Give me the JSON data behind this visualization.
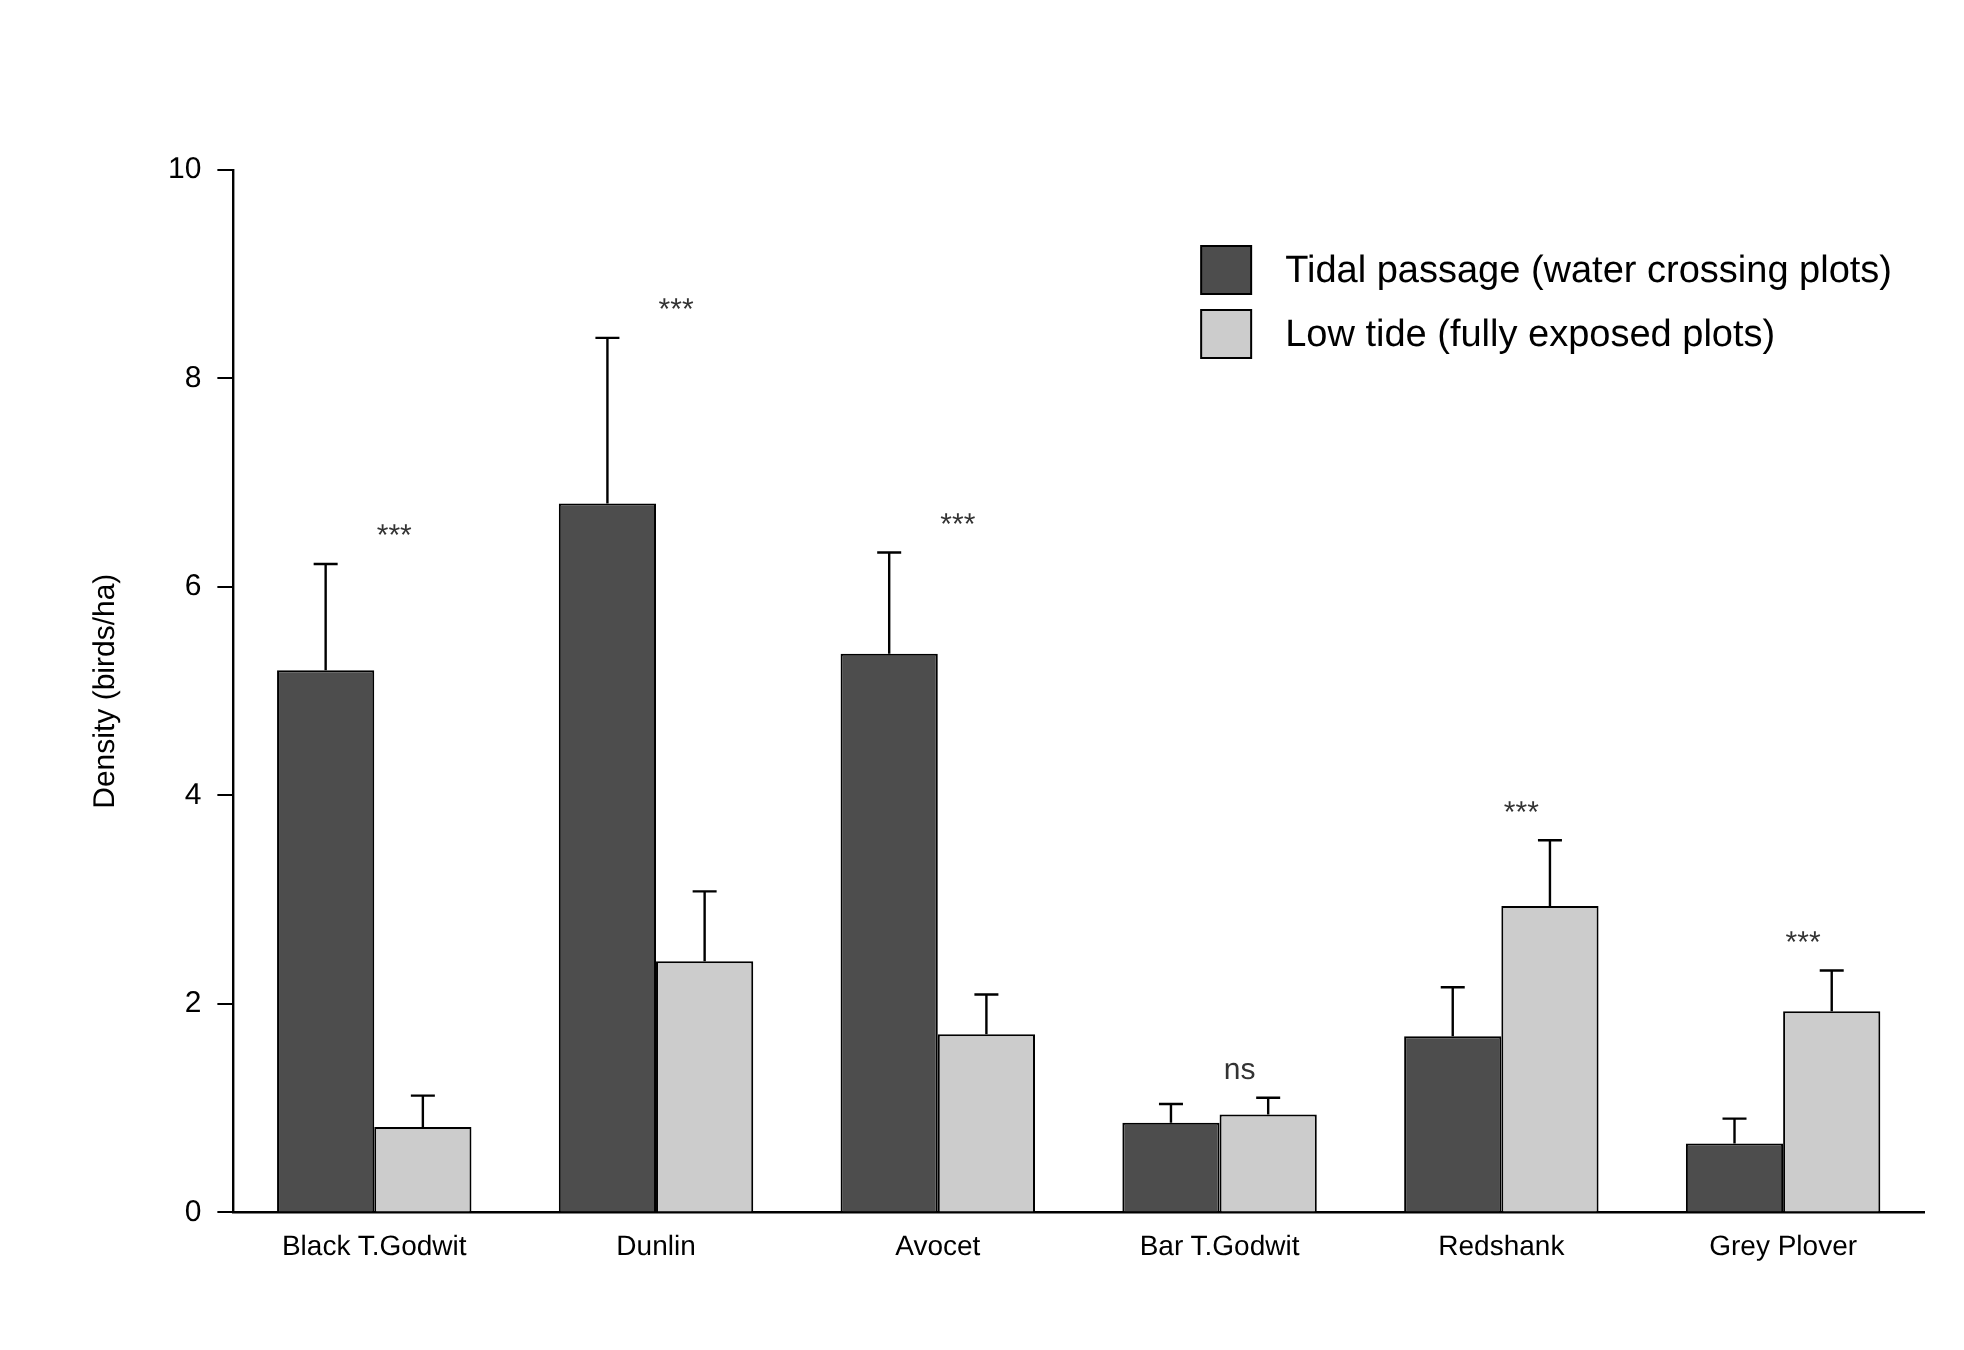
{
  "chart_data": {
    "type": "bar",
    "ylabel": "Density (birds/ha)",
    "categories": [
      "Black T.Godwit",
      "Dunlin",
      "Avocet",
      "Bar T.Godwit",
      "Redshank",
      "Grey Plover"
    ],
    "series": [
      {
        "name": "Tidal passage (water crossing plots)",
        "color": "#4d4d4d",
        "values": [
          5.2,
          6.8,
          5.36,
          0.86,
          1.69,
          0.66
        ],
        "errors": [
          [
            5.2,
            6.22
          ],
          [
            6.8,
            8.39
          ],
          [
            5.36,
            6.33
          ],
          [
            0.86,
            1.04
          ],
          [
            1.69,
            2.16
          ],
          [
            0.66,
            0.9
          ]
        ]
      },
      {
        "name": "Low tide (fully exposed plots)",
        "color": "#cccccc",
        "values": [
          0.82,
          2.41,
          1.71,
          0.94,
          2.94,
          1.93
        ],
        "errors": [
          [
            0.82,
            1.12
          ],
          [
            2.41,
            3.08
          ],
          [
            1.71,
            2.09
          ],
          [
            0.94,
            1.1
          ],
          [
            2.94,
            3.57
          ],
          [
            1.93,
            2.32
          ]
        ]
      }
    ],
    "ylim": [
      0,
      10
    ],
    "yticks": [
      0,
      2,
      4,
      6,
      8,
      10
    ],
    "grid": false,
    "legend": "top right",
    "annotations": [
      "***",
      "***",
      "***",
      "ns",
      "***",
      "***"
    ]
  }
}
